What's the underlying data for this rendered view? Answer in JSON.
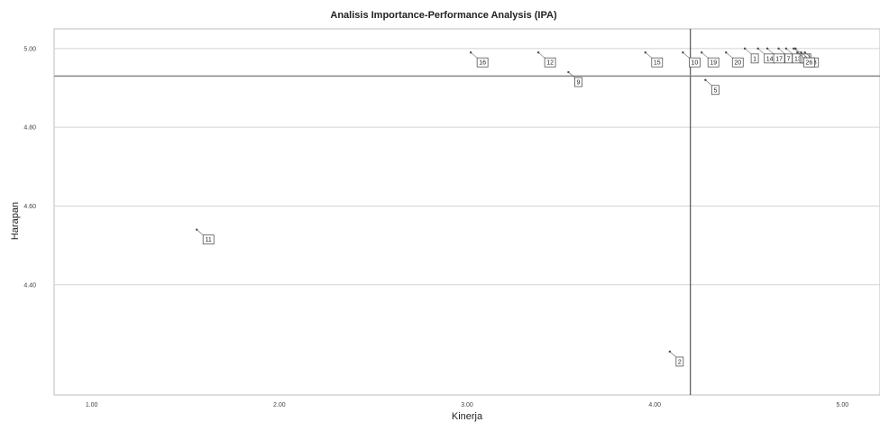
{
  "chart_data": {
    "type": "scatter",
    "title": "Analisis Importance-Performance Analysis (IPA)",
    "xlabel": "Kinerja",
    "ylabel": "Harapan",
    "xlim": [
      0.8,
      5.2
    ],
    "ylim": [
      4.12,
      5.05
    ],
    "x_ticks": [
      "1.00",
      "2.00",
      "3.00",
      "4.00",
      "5.00"
    ],
    "y_ticks": [
      "5.00",
      "4.80",
      "4.60",
      "4.40"
    ],
    "grid": "horizontal",
    "reference_lines": {
      "x_mean": 4.19,
      "y_mean": 4.93
    },
    "points": [
      {
        "label": "16",
        "x": 3.02,
        "y": 4.99
      },
      {
        "label": "12",
        "x": 3.38,
        "y": 4.99
      },
      {
        "label": "9",
        "x": 3.54,
        "y": 4.94
      },
      {
        "label": "15",
        "x": 3.95,
        "y": 4.99
      },
      {
        "label": "10",
        "x": 4.15,
        "y": 4.99
      },
      {
        "label": "19",
        "x": 4.25,
        "y": 4.99
      },
      {
        "label": "20",
        "x": 4.38,
        "y": 4.99
      },
      {
        "label": "5",
        "x": 4.27,
        "y": 4.92
      },
      {
        "label": "1",
        "x": 4.48,
        "y": 5.0
      },
      {
        "label": "14",
        "x": 4.55,
        "y": 5.0
      },
      {
        "label": "17",
        "x": 4.6,
        "y": 5.0
      },
      {
        "label": "7",
        "x": 4.66,
        "y": 5.0
      },
      {
        "label": "13",
        "x": 4.7,
        "y": 5.0
      },
      {
        "label": "18",
        "x": 4.74,
        "y": 5.0
      },
      {
        "label": "3",
        "x": 4.75,
        "y": 5.0
      },
      {
        "label": "4",
        "x": 4.78,
        "y": 4.99
      },
      {
        "label": "8",
        "x": 4.8,
        "y": 4.99
      },
      {
        "label": "26",
        "x": 4.76,
        "y": 4.99
      },
      {
        "label": "11",
        "x": 1.56,
        "y": 4.54
      },
      {
        "label": "2",
        "x": 4.08,
        "y": 4.23
      }
    ]
  }
}
